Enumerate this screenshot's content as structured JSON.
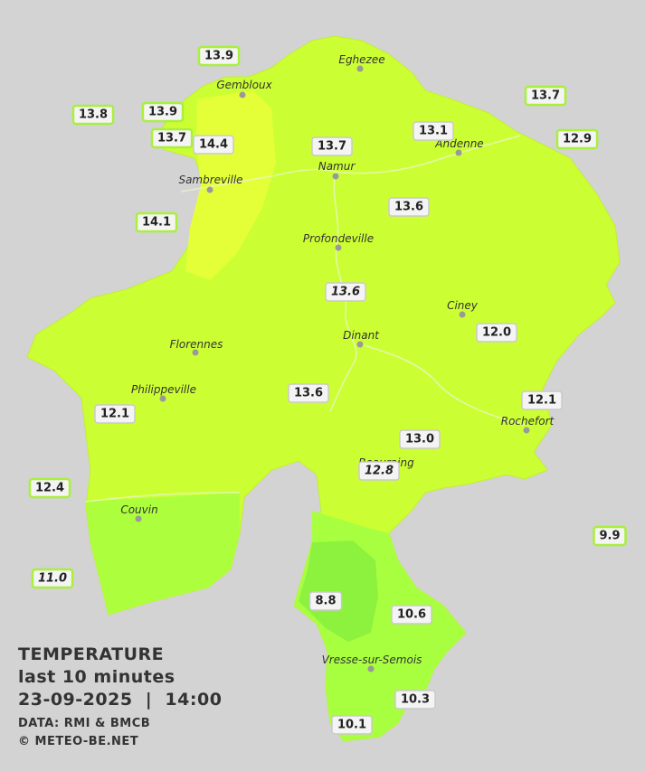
{
  "title": "TEMPERATURE",
  "subtitle": "last 10 minutes",
  "datetime": "23-09-2025  |  14:00",
  "source": "DATA: RMI & BMCB",
  "copyright": "© METEO-BE.NET",
  "cities": [
    "Eghezee",
    "Gembloux",
    "Andenne",
    "Namur",
    "Sambreville",
    "Profondeville",
    "Ciney",
    "Dinant",
    "Florennes",
    "Philippeville",
    "Rochefort",
    "Beauraing",
    "Couvin",
    "Vresse-sur-Semois"
  ],
  "stations": [
    "13.9",
    "13.8",
    "13.9",
    "13.7",
    "14.4",
    "13.7",
    "13.1",
    "13.7",
    "12.9",
    "14.1",
    "13.6",
    "13.6",
    "12.0",
    "13.6",
    "12.1",
    "12.1",
    "13.0",
    "12.8",
    "12.4",
    "9.9",
    "11.0",
    "8.8",
    "10.6",
    "10.3",
    "10.1"
  ]
}
